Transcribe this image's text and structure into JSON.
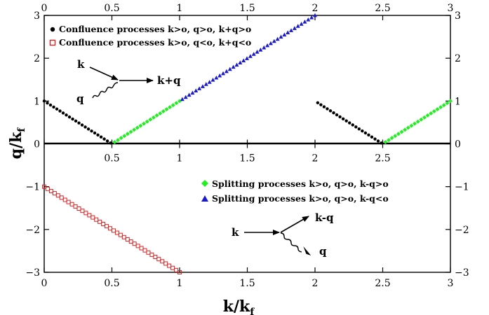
{
  "chart_data": {
    "type": "scatter",
    "title": "",
    "xlabel": "k/k",
    "xlabel_sub": "f",
    "ylabel": "q/k",
    "ylabel_sub": "f",
    "xlim": [
      0,
      3
    ],
    "ylim": [
      -3,
      3
    ],
    "x_ticks": [
      "0",
      "0.5",
      "1",
      "1.5",
      "2",
      "2.5",
      "3"
    ],
    "x_tick_values": [
      0,
      0.5,
      1,
      1.5,
      2,
      2.5,
      3
    ],
    "x_mid_ticks": [
      "0.5",
      "1",
      "1.5",
      "2",
      "2.5"
    ],
    "x_mid_tick_values": [
      0.5,
      1,
      1.5,
      2,
      2.5
    ],
    "y_ticks": [
      "3",
      "2",
      "1",
      "0",
      "−1",
      "−2",
      "−3"
    ],
    "y_tick_values": [
      3,
      2,
      1,
      0,
      -1,
      -2,
      -3
    ],
    "grid": false,
    "legend_top": [
      {
        "series": 0,
        "label": "Confluence processes k>o, q>o, k+q>o"
      },
      {
        "series": 1,
        "label": "Confluence processes k>o, q<o, k+q<o"
      }
    ],
    "legend_bottom": [
      {
        "series": 2,
        "label": "Splitting processes k>o, q>o, k-q>o"
      },
      {
        "series": 3,
        "label": "Splitting processes k>o, q>o, k-q<o"
      }
    ],
    "series": [
      {
        "color": "#000000",
        "marker": "circle",
        "segments": [
          {
            "x_start": 0.0,
            "x_end": 0.49,
            "count": 22,
            "slope": -2,
            "intercept": 1
          },
          {
            "x_start": 2.02,
            "x_end": 2.49,
            "count": 21,
            "slope": -2,
            "intercept": 5
          }
        ]
      },
      {
        "color": "#e02020",
        "marker": "square-open",
        "segments": [
          {
            "x_start": 0.0,
            "x_end": 1.0,
            "count": 40,
            "slope": -2,
            "intercept": -1
          }
        ]
      },
      {
        "color": "#22ee22",
        "marker": "diamond",
        "segments": [
          {
            "x_start": 0.52,
            "x_end": 1.0,
            "count": 21,
            "slope": 2,
            "intercept": -1
          },
          {
            "x_start": 2.52,
            "x_end": 3.0,
            "count": 21,
            "slope": 2,
            "intercept": -5
          }
        ]
      },
      {
        "color": "#1a1acc",
        "marker": "triangle",
        "segments": [
          {
            "x_start": 1.02,
            "x_end": 2.0,
            "count": 40,
            "slope": 2,
            "intercept": -1
          }
        ]
      }
    ]
  },
  "diagrams": {
    "confluence": {
      "k": "k",
      "q": "q",
      "out": "k+q"
    },
    "splitting": {
      "k": "k",
      "out1": "k-q",
      "out2": "q"
    }
  }
}
